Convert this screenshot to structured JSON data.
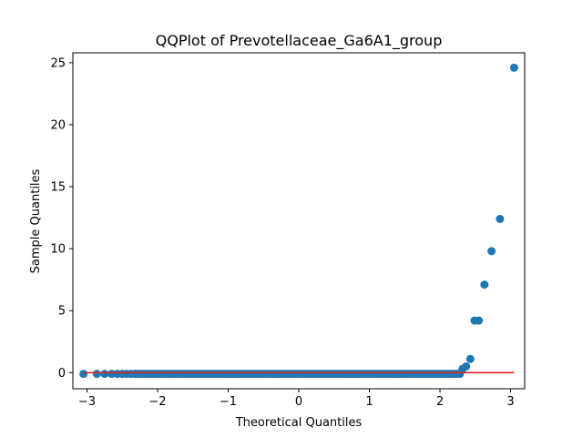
{
  "chart_data": {
    "type": "scatter",
    "title": "QQPlot of Prevotellaceae_Ga6A1_group",
    "xlabel": "Theoretical Quantiles",
    "ylabel": "Sample Quantiles",
    "xlim": [
      -3.2,
      3.2
    ],
    "ylim": [
      -1.3,
      25.8
    ],
    "xticks": [
      -3,
      -2,
      -1,
      0,
      1,
      2,
      3
    ],
    "xtick_labels": [
      "−3",
      "−2",
      "−1",
      "0",
      "1",
      "2",
      "3"
    ],
    "yticks": [
      0,
      5,
      10,
      15,
      20,
      25
    ],
    "ytick_labels": [
      "0",
      "5",
      "10",
      "15",
      "20",
      "25"
    ],
    "grid": false,
    "colors": {
      "points": "#1f77b4",
      "reference_line": "#d62728"
    },
    "reference_line": {
      "x": [
        -3.05,
        3.05
      ],
      "y": [
        0,
        0
      ]
    },
    "points": {
      "x": [
        -3.05,
        -2.86,
        -2.75,
        -2.65,
        -2.57,
        -2.5,
        -2.44,
        -2.38,
        -2.32,
        2.28,
        2.32,
        2.37,
        2.43,
        2.49,
        2.55,
        2.63,
        2.73,
        2.85,
        3.05
      ],
      "y": [
        -0.1,
        -0.1,
        -0.1,
        -0.1,
        -0.1,
        -0.1,
        -0.1,
        -0.1,
        -0.1,
        -0.1,
        0.3,
        0.5,
        1.1,
        4.2,
        4.2,
        7.1,
        9.8,
        12.4,
        24.6
      ]
    },
    "dense_band": {
      "x_start": -2.32,
      "x_end": 2.28,
      "y": -0.1
    }
  }
}
